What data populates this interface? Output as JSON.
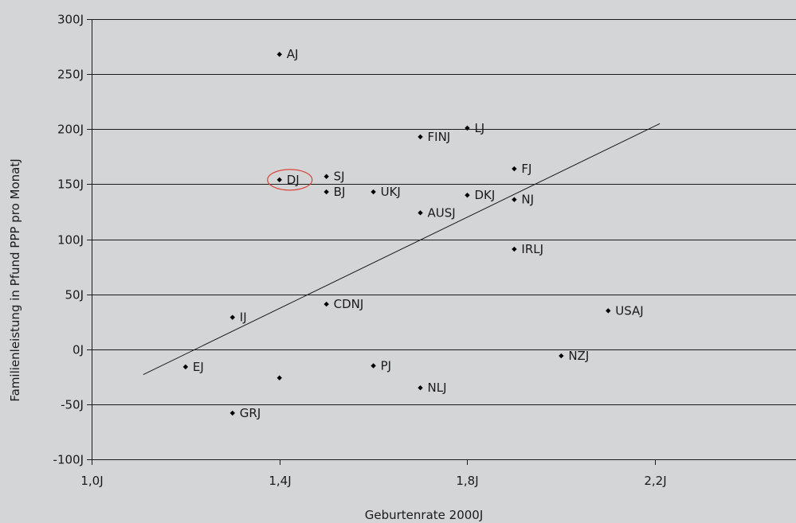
{
  "chart_data": {
    "type": "scatter",
    "xlabel": "Geburtenrate 2000J",
    "ylabel": "Familienleistung in Pfund PPP pro MonatJ",
    "xlim": [
      1.0,
      2.5
    ],
    "ylim": [
      -100,
      300
    ],
    "x_ticks": [
      1.0,
      1.4,
      1.8,
      2.2
    ],
    "x_tick_labels": [
      "1,0J",
      "1,4J",
      "1,8J",
      "2,2J"
    ],
    "y_ticks": [
      -100,
      -50,
      0,
      50,
      100,
      150,
      200,
      250,
      300
    ],
    "y_tick_labels": [
      "-100J",
      "-50J",
      "0J",
      "50J",
      "100J",
      "150J",
      "200J",
      "250J",
      "300J"
    ],
    "grid": "horizontal",
    "colors": {
      "background": "#d4d5d7",
      "marker": "#000000",
      "highlight": "#d9463a"
    },
    "points": [
      {
        "x": 1.4,
        "y": 268,
        "label": "AJ"
      },
      {
        "x": 1.8,
        "y": 201,
        "label": "LJ"
      },
      {
        "x": 1.7,
        "y": 193,
        "label": "FINJ"
      },
      {
        "x": 1.9,
        "y": 164,
        "label": "FJ"
      },
      {
        "x": 1.5,
        "y": 157,
        "label": "SJ"
      },
      {
        "x": 1.4,
        "y": 154,
        "label": "DJ",
        "highlighted": true
      },
      {
        "x": 1.5,
        "y": 143,
        "label": "BJ"
      },
      {
        "x": 1.6,
        "y": 143,
        "label": "UKJ"
      },
      {
        "x": 1.8,
        "y": 140,
        "label": "DKJ"
      },
      {
        "x": 1.9,
        "y": 136,
        "label": "NJ"
      },
      {
        "x": 1.7,
        "y": 124,
        "label": "AUSJ"
      },
      {
        "x": 1.9,
        "y": 91,
        "label": "IRLJ"
      },
      {
        "x": 1.5,
        "y": 41,
        "label": "CDNJ"
      },
      {
        "x": 2.1,
        "y": 35,
        "label": "USAJ"
      },
      {
        "x": 1.3,
        "y": 29,
        "label": "IJ"
      },
      {
        "x": 2.0,
        "y": -6,
        "label": "NZJ"
      },
      {
        "x": 1.6,
        "y": -15,
        "label": "PJ"
      },
      {
        "x": 1.2,
        "y": -16,
        "label": "EJ"
      },
      {
        "x": 1.4,
        "y": -26,
        "label": ""
      },
      {
        "x": 1.7,
        "y": -35,
        "label": "NLJ"
      },
      {
        "x": 1.3,
        "y": -58,
        "label": "GRJ"
      }
    ],
    "trendline": {
      "x": [
        1.11,
        2.21
      ],
      "y": [
        -23,
        205
      ]
    }
  }
}
